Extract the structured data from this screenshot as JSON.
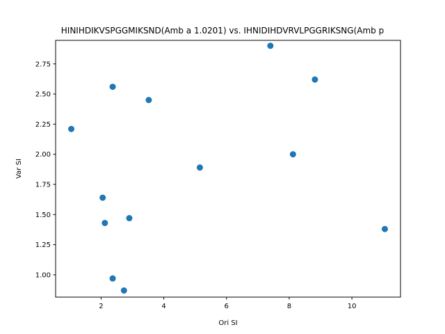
{
  "chart_data": {
    "type": "scatter",
    "title": "HINIHDIKVSPGGMIKSND(Amb a 1.0201) vs. IHNIDIHDVRVLPGGRIKSNG(Amb p",
    "xlabel": "Ori SI",
    "ylabel": "Var SI",
    "xlim": [
      0.55,
      11.55
    ],
    "ylim": [
      0.815,
      2.945
    ],
    "xticks": [
      2,
      4,
      6,
      8,
      10
    ],
    "xtick_labels": [
      "2",
      "4",
      "6",
      "8",
      "10"
    ],
    "yticks": [
      1.0,
      1.25,
      1.5,
      1.75,
      2.0,
      2.25,
      2.5,
      2.75
    ],
    "ytick_labels": [
      "1.00",
      "1.25",
      "1.50",
      "1.75",
      "2.00",
      "2.25",
      "2.50",
      "2.75"
    ],
    "grid": false,
    "marker_color": "#1f77b4",
    "points": [
      {
        "x": 1.05,
        "y": 2.21
      },
      {
        "x": 2.05,
        "y": 1.64
      },
      {
        "x": 2.12,
        "y": 1.43
      },
      {
        "x": 2.37,
        "y": 2.56
      },
      {
        "x": 2.37,
        "y": 0.97
      },
      {
        "x": 2.73,
        "y": 0.87
      },
      {
        "x": 2.9,
        "y": 1.47
      },
      {
        "x": 3.52,
        "y": 2.45
      },
      {
        "x": 5.15,
        "y": 1.89
      },
      {
        "x": 7.4,
        "y": 2.9
      },
      {
        "x": 8.12,
        "y": 2.0
      },
      {
        "x": 8.82,
        "y": 2.62
      },
      {
        "x": 11.05,
        "y": 1.38
      }
    ]
  }
}
